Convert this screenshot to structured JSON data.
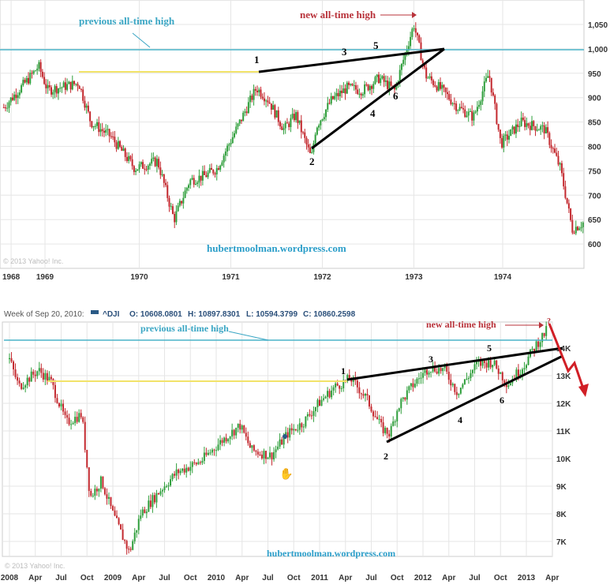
{
  "chart_data": [
    {
      "type": "candlestick",
      "title": "",
      "x_ticks": [
        "1968",
        "1969",
        "1970",
        "1971",
        "1972",
        "1973",
        "1974"
      ],
      "y_ticks": [
        "1,050",
        "1,000",
        "950",
        "900",
        "850",
        "800",
        "750",
        "700",
        "650",
        "600"
      ],
      "ylim": [
        570,
        1070
      ],
      "grid": true,
      "copyright": "© 2013 Yahoo! Inc.",
      "watermark": "hubertmoolman.wordpress.com",
      "series": [
        [
          1968.55,
          880
        ],
        [
          1968.85,
          945
        ],
        [
          1968.93,
          965
        ],
        [
          1969.03,
          915
        ],
        [
          1969.37,
          930
        ],
        [
          1969.5,
          850
        ],
        [
          1969.72,
          820
        ],
        [
          1969.98,
          755
        ],
        [
          1970.23,
          770
        ],
        [
          1970.41,
          650
        ],
        [
          1970.58,
          730
        ],
        [
          1970.75,
          740
        ],
        [
          1970.88,
          755
        ],
        [
          1971.09,
          835
        ],
        [
          1971.31,
          920
        ],
        [
          1971.44,
          895
        ],
        [
          1971.61,
          835
        ],
        [
          1971.74,
          865
        ],
        [
          1971.91,
          775
        ],
        [
          1971.96,
          840
        ],
        [
          1972.13,
          895
        ],
        [
          1972.3,
          920
        ],
        [
          1972.47,
          915
        ],
        [
          1972.65,
          940
        ],
        [
          1972.82,
          915
        ],
        [
          1972.95,
          1000
        ],
        [
          1973.03,
          1050
        ],
        [
          1973.16,
          945
        ],
        [
          1973.34,
          915
        ],
        [
          1973.51,
          880
        ],
        [
          1973.68,
          860
        ],
        [
          1973.85,
          950
        ],
        [
          1973.98,
          805
        ],
        [
          1974.2,
          850
        ],
        [
          1974.46,
          835
        ],
        [
          1974.63,
          755
        ],
        [
          1974.76,
          630
        ],
        [
          1974.89,
          645
        ]
      ],
      "annotations": {
        "prev_ath": "previous all-time high",
        "new_ath": "new all-time high",
        "points": [
          "1",
          "2",
          "3",
          "4",
          "5",
          "6"
        ]
      },
      "colors": {
        "up": "#2f9e3b",
        "down": "#c3282e",
        "prev_ath_line": "#4ab3c8",
        "yellow_line": "#f2e36a",
        "trend": "#000000",
        "new_ath": "#b8323a"
      }
    },
    {
      "type": "candlestick",
      "title": "",
      "header": "Week of Sep 20, 2010:",
      "quote": {
        "symbol": "^DJI",
        "o": "O: 10608.0801",
        "h": "H: 10897.8301",
        "l": "L: 10594.3799",
        "c": "C: 10860.2598"
      },
      "x_ticks": [
        "2008",
        "Apr",
        "Jul",
        "Oct",
        "2009",
        "Apr",
        "Jul",
        "Oct",
        "2010",
        "Apr",
        "Jul",
        "Oct",
        "2011",
        "Apr",
        "Jul",
        "Oct",
        "2012",
        "Apr",
        "Jul",
        "Oct",
        "2013",
        "Apr"
      ],
      "y_ticks": [
        "14K",
        "13K",
        "12K",
        "11K",
        "10K",
        "9K",
        "8K",
        "7K"
      ],
      "ylim": [
        6400,
        15000
      ],
      "grid": true,
      "copyright": "© 2013 Yahoo! Inc.",
      "watermark": "hubertmoolman.wordpress.com",
      "series": [
        [
          2008.0,
          13600
        ],
        [
          2008.09,
          12600
        ],
        [
          2008.28,
          13200
        ],
        [
          2008.4,
          12800
        ],
        [
          2008.55,
          11300
        ],
        [
          2008.7,
          11600
        ],
        [
          2008.78,
          8600
        ],
        [
          2008.89,
          9200
        ],
        [
          2009.0,
          8000
        ],
        [
          2009.16,
          6600
        ],
        [
          2009.27,
          8000
        ],
        [
          2009.47,
          8900
        ],
        [
          2009.62,
          9500
        ],
        [
          2009.85,
          9900
        ],
        [
          2010.04,
          10600
        ],
        [
          2010.23,
          11200
        ],
        [
          2010.34,
          10300
        ],
        [
          2010.53,
          10100
        ],
        [
          2010.69,
          10900
        ],
        [
          2010.84,
          11300
        ],
        [
          2010.99,
          12000
        ],
        [
          2011.15,
          12600
        ],
        [
          2011.3,
          12900
        ],
        [
          2011.45,
          12200
        ],
        [
          2011.6,
          11100
        ],
        [
          2011.68,
          10900
        ],
        [
          2011.76,
          11900
        ],
        [
          2011.91,
          12700
        ],
        [
          2012.06,
          13300
        ],
        [
          2012.21,
          13200
        ],
        [
          2012.33,
          12400
        ],
        [
          2012.52,
          13400
        ],
        [
          2012.67,
          13500
        ],
        [
          2012.82,
          12700
        ],
        [
          2012.98,
          13400
        ],
        [
          2013.09,
          14100
        ],
        [
          2013.21,
          14700
        ]
      ],
      "annotations": {
        "prev_ath": "previous all-time high",
        "new_ath": "new all-time high",
        "question": "?",
        "points": [
          "1",
          "2",
          "3",
          "4",
          "5",
          "6"
        ]
      },
      "colors": {
        "up": "#2f9e3b",
        "down": "#c3282e",
        "prev_ath_line": "#4ab3c8",
        "yellow_line": "#f2e36a",
        "trend": "#000000",
        "forecast_arrow": "#d11f26"
      }
    }
  ]
}
